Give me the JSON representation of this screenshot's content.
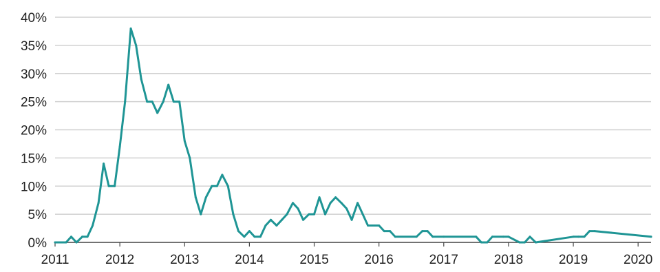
{
  "chart_data": {
    "type": "line",
    "title": "",
    "xlabel": "",
    "ylabel": "",
    "x_range": [
      2011,
      2020.2
    ],
    "ylim": [
      0,
      40
    ],
    "grid": true,
    "y_ticks": [
      {
        "value": 0,
        "label": "0%"
      },
      {
        "value": 5,
        "label": "5%"
      },
      {
        "value": 10,
        "label": "10%"
      },
      {
        "value": 15,
        "label": "15%"
      },
      {
        "value": 20,
        "label": "20%"
      },
      {
        "value": 25,
        "label": "25%"
      },
      {
        "value": 30,
        "label": "30%"
      },
      {
        "value": 35,
        "label": "35%"
      },
      {
        "value": 40,
        "label": "40%"
      }
    ],
    "x_ticks": [
      {
        "value": 2011,
        "label": "2011"
      },
      {
        "value": 2012,
        "label": "2012"
      },
      {
        "value": 2013,
        "label": "2013"
      },
      {
        "value": 2014,
        "label": "2014"
      },
      {
        "value": 2015,
        "label": "2015"
      },
      {
        "value": 2016,
        "label": "2016"
      },
      {
        "value": 2017,
        "label": "2017"
      },
      {
        "value": 2018,
        "label": "2018"
      },
      {
        "value": 2019,
        "label": "2019"
      },
      {
        "value": 2020,
        "label": "2020"
      }
    ],
    "series": [
      {
        "color": "#1f9595",
        "x": [
          2011.0,
          2011.17,
          2011.25,
          2011.33,
          2011.42,
          2011.5,
          2011.58,
          2011.67,
          2011.75,
          2011.83,
          2011.92,
          2012.0,
          2012.08,
          2012.17,
          2012.25,
          2012.33,
          2012.42,
          2012.5,
          2012.58,
          2012.67,
          2012.75,
          2012.83,
          2012.92,
          2013.0,
          2013.08,
          2013.17,
          2013.25,
          2013.33,
          2013.42,
          2013.5,
          2013.58,
          2013.67,
          2013.75,
          2013.83,
          2013.92,
          2014.0,
          2014.08,
          2014.17,
          2014.25,
          2014.33,
          2014.42,
          2014.5,
          2014.58,
          2014.67,
          2014.75,
          2014.83,
          2014.92,
          2015.0,
          2015.08,
          2015.17,
          2015.25,
          2015.33,
          2015.42,
          2015.5,
          2015.58,
          2015.67,
          2015.75,
          2015.83,
          2015.92,
          2016.0,
          2016.08,
          2016.17,
          2016.25,
          2016.58,
          2016.67,
          2016.75,
          2016.83,
          2017.0,
          2017.5,
          2017.58,
          2017.67,
          2017.75,
          2017.92,
          2018.0,
          2018.17,
          2018.25,
          2018.33,
          2018.42,
          2019.0,
          2019.08,
          2019.17,
          2019.25,
          2019.33,
          2020.2
        ],
        "y": [
          0,
          0,
          1,
          0,
          1,
          1,
          3,
          7,
          14,
          10,
          10,
          17,
          25,
          38,
          35,
          29,
          25,
          25,
          23,
          25,
          28,
          25,
          25,
          18,
          15,
          8,
          5,
          8,
          10,
          10,
          12,
          10,
          5,
          2,
          1,
          2,
          1,
          1,
          3,
          4,
          3,
          4,
          5,
          7,
          6,
          4,
          5,
          5,
          8,
          5,
          7,
          8,
          7,
          6,
          4,
          7,
          5,
          3,
          3,
          3,
          2,
          2,
          1,
          1,
          2,
          2,
          1,
          1,
          1,
          0,
          0,
          1,
          1,
          1,
          0,
          0,
          1,
          0,
          1,
          1,
          1,
          2,
          2,
          1
        ]
      }
    ]
  }
}
